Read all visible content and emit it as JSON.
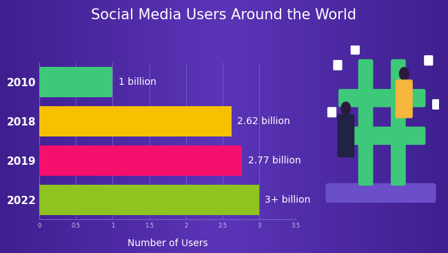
{
  "chart_data": {
    "type": "bar",
    "orientation": "horizontal",
    "title": "Social Media Users Around the World",
    "x_label": "Number of Users",
    "categories": [
      "2010",
      "2018",
      "2019",
      "2022"
    ],
    "values": [
      1,
      2.62,
      2.77,
      3
    ],
    "value_labels": [
      "1 billion",
      "2.62 billion",
      "2.77 billion",
      "3+ billion"
    ],
    "colors": [
      "#3ec97a",
      "#f7c000",
      "#f5106e",
      "#8fc31f"
    ],
    "xlim": [
      0,
      3.5
    ],
    "xticks": [
      0,
      0.5,
      1,
      1.5,
      2,
      2.5,
      3,
      3.5
    ],
    "grid": true,
    "data_labels": true
  }
}
